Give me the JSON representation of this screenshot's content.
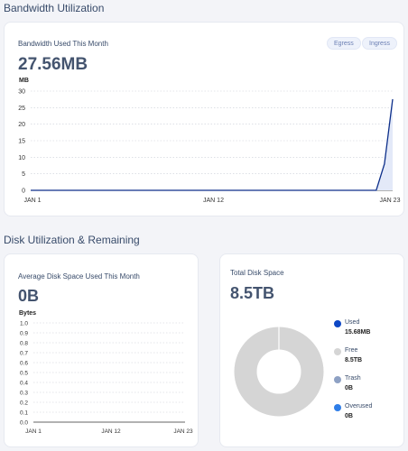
{
  "bandwidth": {
    "section_title": "Bandwidth Utilization",
    "card_title": "Bandwidth Used This Month",
    "value": "27.56MB",
    "unit": "MB",
    "pills": [
      "Egress",
      "Ingress"
    ]
  },
  "disk": {
    "section_title": "Disk Utilization & Remaining",
    "avg_title": "Average Disk Space Used This Month",
    "avg_value": "0B",
    "avg_unit": "Bytes",
    "total_title": "Total Disk Space",
    "total_value": "8.5TB",
    "legend": [
      {
        "name": "Used",
        "value": "15.68MB",
        "color": "#0d47c5"
      },
      {
        "name": "Free",
        "value": "8.5TB",
        "color": "#d5d5d5"
      },
      {
        "name": "Trash",
        "value": "0B",
        "color": "#8ea1c4"
      },
      {
        "name": "Overused",
        "value": "0B",
        "color": "#2f7ee8"
      }
    ]
  },
  "chart_data": [
    {
      "type": "area",
      "title": "",
      "ylabel": "MB",
      "x": [
        "JAN 1",
        "JAN 12",
        "JAN 23"
      ],
      "xticks": [
        "JAN 1",
        "JAN 12",
        "JAN 23"
      ],
      "yticks": [
        0,
        5,
        10,
        15,
        20,
        25,
        30
      ],
      "ylim": [
        0,
        30
      ],
      "xlim": [
        1,
        23
      ],
      "series": [
        {
          "x": [
            1,
            22,
            22.5,
            23
          ],
          "values": [
            0,
            0,
            8,
            27.56
          ]
        }
      ],
      "colors": {
        "line": "#0d2f8a",
        "fill": "#e3e9f8"
      }
    },
    {
      "type": "line",
      "title": "",
      "ylabel": "Bytes",
      "xticks": [
        "JAN 1",
        "JAN 12",
        "JAN 23"
      ],
      "yticks": [
        0,
        0.1,
        0.2,
        0.3,
        0.4,
        0.5,
        0.6,
        0.7,
        0.8,
        0.9,
        1.0
      ],
      "ylim": [
        0,
        1
      ],
      "series": []
    },
    {
      "type": "pie",
      "title": "Total Disk Space",
      "categories": [
        "Used",
        "Free",
        "Trash",
        "Overused"
      ],
      "values": [
        15.68,
        8500000,
        0,
        0
      ],
      "units": "MB",
      "colors": [
        "#0d47c5",
        "#d5d5d5",
        "#8ea1c4",
        "#2f7ee8"
      ]
    }
  ]
}
